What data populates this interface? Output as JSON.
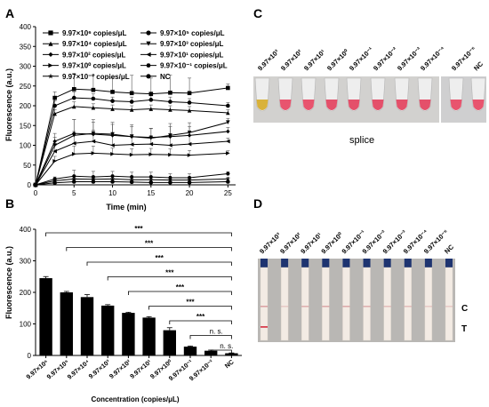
{
  "panels": {
    "A": "A",
    "B": "B",
    "C": "C",
    "D": "D"
  },
  "chart_data": [
    {
      "type": "line",
      "panel": "A",
      "xlabel": "Time (min)",
      "ylabel": "Fluorescence (a.u.)",
      "xlim": [
        0,
        26
      ],
      "ylim": [
        0,
        400
      ],
      "xticks": [
        0,
        5,
        10,
        15,
        20,
        25
      ],
      "yticks": [
        0,
        50,
        100,
        150,
        200,
        250,
        300,
        350,
        400
      ],
      "x": [
        0,
        2.5,
        5,
        7.5,
        10,
        12.5,
        15,
        17.5,
        20,
        25
      ],
      "series": [
        {
          "name": "9.97×10⁶ copies/μL",
          "marker": "square",
          "values": [
            0,
            220,
            242,
            240,
            235,
            232,
            230,
            233,
            232,
            245
          ],
          "err": [
            0,
            15,
            40,
            38,
            35,
            45,
            40,
            45,
            38,
            10
          ]
        },
        {
          "name": "9.97×10⁵ copies/μL",
          "marker": "circle",
          "values": [
            0,
            200,
            220,
            218,
            212,
            210,
            215,
            210,
            208,
            200
          ],
          "err": [
            0,
            12,
            15,
            12,
            10,
            12,
            10,
            12,
            10,
            8
          ]
        },
        {
          "name": "9.97×10⁴ copies/μL",
          "marker": "triangle-up",
          "values": [
            0,
            180,
            198,
            195,
            192,
            190,
            192,
            190,
            188,
            182
          ],
          "err": [
            0,
            10,
            12,
            10,
            10,
            10,
            10,
            10,
            10,
            8
          ]
        },
        {
          "name": "9.97×10³ copies/μL",
          "marker": "triangle-down",
          "values": [
            0,
            100,
            125,
            130,
            128,
            122,
            118,
            125,
            132,
            158
          ],
          "err": [
            0,
            20,
            40,
            35,
            30,
            30,
            25,
            30,
            25,
            10
          ]
        },
        {
          "name": "9.97×10² copies/μL",
          "marker": "diamond",
          "values": [
            0,
            110,
            130,
            128,
            125,
            122,
            120,
            122,
            125,
            135
          ],
          "err": [
            0,
            20,
            35,
            30,
            28,
            25,
            22,
            25,
            22,
            10
          ]
        },
        {
          "name": "9.97×10¹ copies/μL",
          "marker": "triangle-left",
          "values": [
            0,
            85,
            105,
            110,
            100,
            102,
            103,
            100,
            103,
            110
          ],
          "err": [
            0,
            15,
            30,
            28,
            25,
            25,
            22,
            25,
            22,
            8
          ]
        },
        {
          "name": "9.97×10⁰ copies/μL",
          "marker": "triangle-right",
          "values": [
            0,
            60,
            78,
            80,
            78,
            76,
            77,
            76,
            75,
            80
          ],
          "err": [
            0,
            12,
            20,
            18,
            15,
            15,
            15,
            15,
            12,
            6
          ]
        },
        {
          "name": "9.97×10⁻¹ copies/μL",
          "marker": "hexagon",
          "values": [
            0,
            15,
            22,
            20,
            22,
            20,
            20,
            18,
            18,
            28
          ],
          "err": [
            0,
            5,
            15,
            14,
            12,
            12,
            12,
            10,
            10,
            5
          ]
        },
        {
          "name": "9.97×10⁻² copies/μL",
          "marker": "star",
          "values": [
            0,
            10,
            15,
            14,
            15,
            13,
            13,
            12,
            12,
            15
          ],
          "err": [
            0,
            4,
            8,
            8,
            8,
            8,
            7,
            6,
            6,
            4
          ]
        },
        {
          "name": "NC",
          "marker": "circle",
          "values": [
            0,
            5,
            8,
            8,
            8,
            7,
            6,
            6,
            6,
            8
          ],
          "err": [
            0,
            2,
            4,
            4,
            4,
            3,
            3,
            3,
            3,
            2
          ]
        }
      ]
    },
    {
      "type": "bar",
      "panel": "B",
      "xlabel": "Concentration (copies/μL)",
      "ylabel": "Fluorescence (a.u.)",
      "ylim": [
        0,
        400
      ],
      "yticks": [
        0,
        100,
        200,
        300,
        400
      ],
      "categories": [
        "9.97×10⁶",
        "9.97×10⁵",
        "9.97×10⁴",
        "9.97×10³",
        "9.97×10²",
        "9.97×10¹",
        "9.97×10⁰",
        "9.97×10⁻¹",
        "9.97×10⁻²",
        "NC"
      ],
      "values": [
        245,
        200,
        185,
        158,
        135,
        120,
        80,
        28,
        15,
        7
      ],
      "err": [
        5,
        3,
        8,
        3,
        2,
        3,
        8,
        2,
        2,
        1
      ],
      "significance": [
        {
          "from": 0,
          "to": 9,
          "label": "***"
        },
        {
          "from": 1,
          "to": 9,
          "label": "***"
        },
        {
          "from": 2,
          "to": 9,
          "label": "***"
        },
        {
          "from": 3,
          "to": 9,
          "label": "***"
        },
        {
          "from": 4,
          "to": 9,
          "label": "***"
        },
        {
          "from": 5,
          "to": 9,
          "label": "***"
        },
        {
          "from": 6,
          "to": 9,
          "label": "***"
        },
        {
          "from": 7,
          "to": 9,
          "label": "n. s."
        },
        {
          "from": 8,
          "to": 9,
          "label": "n. s."
        }
      ]
    }
  ],
  "panel_c": {
    "labels": [
      "9.97×10³",
      "9.97×10²",
      "9.97×10¹",
      "9.97×10⁰",
      "9.97×10⁻¹",
      "9.97×10⁻²",
      "9.97×10⁻³",
      "9.97×10⁻⁴",
      "9.97×10⁻⁵",
      "NC"
    ],
    "caption": "splice",
    "tube_colors": [
      "#d9b23a",
      "#e8546e",
      "#e8546e",
      "#e4506a",
      "#e4506a",
      "#e4506a",
      "#e4506a",
      "#e4506a",
      "#e8546e",
      "#e8546e"
    ]
  },
  "panel_d": {
    "labels": [
      "9.97×10³",
      "9.97×10²",
      "9.97×10¹",
      "9.97×10⁰",
      "9.97×10⁻¹",
      "9.97×10⁻²",
      "9.97×10⁻³",
      "9.97×10⁻⁴",
      "9.97×10⁻⁵",
      "NC"
    ],
    "line_c": "C",
    "line_t": "T",
    "t_line_visible": [
      true,
      false,
      false,
      false,
      false,
      false,
      false,
      false,
      false,
      false
    ],
    "c_intensity": [
      0.55,
      0.25,
      0.45,
      0.5,
      0.5,
      0.45,
      0.35,
      0.35,
      0.25,
      0.25
    ],
    "colors": {
      "strip": "#f3ebe4",
      "cap": "#1e3470",
      "line": "#c86a72",
      "background": "#b9b7b4"
    }
  }
}
